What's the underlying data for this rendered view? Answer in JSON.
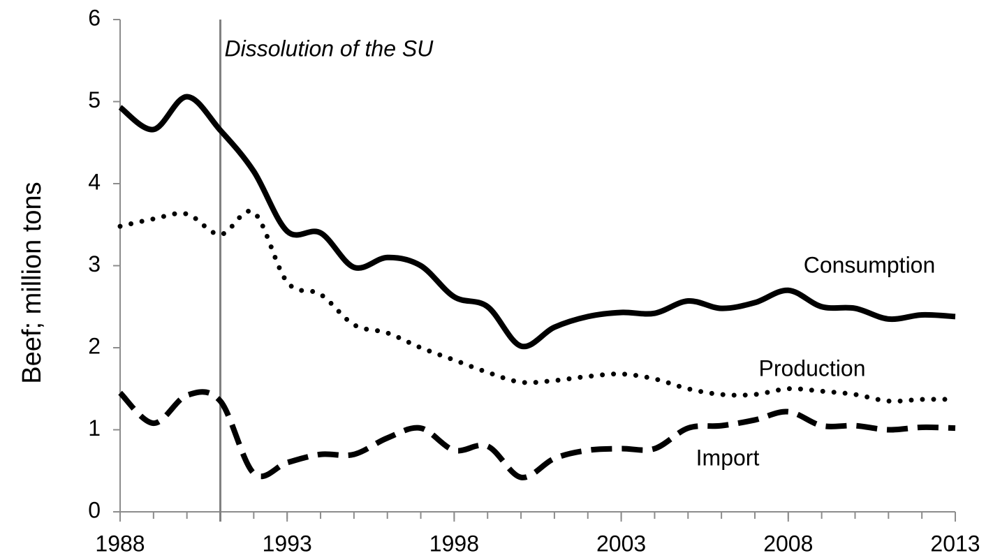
{
  "chart_data": {
    "type": "line",
    "y_label": "Beef; million tons",
    "x": [
      1988,
      1989,
      1990,
      1991,
      1992,
      1993,
      1994,
      1995,
      1996,
      1997,
      1998,
      1999,
      2000,
      2001,
      2002,
      2003,
      2004,
      2005,
      2006,
      2007,
      2008,
      2009,
      2010,
      2011,
      2012,
      2013
    ],
    "series": [
      {
        "name": "Consumption",
        "color": "#000000",
        "style": "solid",
        "values": [
          4.93,
          4.66,
          5.06,
          4.65,
          4.15,
          3.42,
          3.4,
          2.98,
          3.1,
          3.0,
          2.62,
          2.5,
          2.02,
          2.25,
          2.38,
          2.43,
          2.42,
          2.57,
          2.48,
          2.55,
          2.7,
          2.5,
          2.48,
          2.35,
          2.4,
          2.38
        ]
      },
      {
        "name": "Production",
        "color": "#000000",
        "style": "dotted",
        "values": [
          3.48,
          3.57,
          3.63,
          3.38,
          3.65,
          2.8,
          2.65,
          2.28,
          2.18,
          2.0,
          1.85,
          1.7,
          1.58,
          1.6,
          1.65,
          1.68,
          1.62,
          1.5,
          1.43,
          1.43,
          1.5,
          1.47,
          1.43,
          1.35,
          1.37,
          1.37
        ]
      },
      {
        "name": "Import",
        "color": "#000000",
        "style": "dashed",
        "values": [
          1.45,
          1.08,
          1.42,
          1.35,
          0.47,
          0.6,
          0.7,
          0.7,
          0.9,
          1.02,
          0.75,
          0.8,
          0.42,
          0.65,
          0.75,
          0.77,
          0.77,
          1.02,
          1.05,
          1.12,
          1.22,
          1.05,
          1.05,
          1.0,
          1.03,
          1.02
        ]
      }
    ],
    "annotations": [
      {
        "text": "Dissolution of the SU",
        "x": 1991
      }
    ],
    "xlim": [
      1988,
      2013
    ],
    "xticks": [
      1988,
      1993,
      1998,
      2003,
      2008,
      2013
    ],
    "ylim": [
      0,
      6
    ],
    "yticks": [
      0,
      1,
      2,
      3,
      4,
      5,
      6
    ],
    "grid": false
  }
}
